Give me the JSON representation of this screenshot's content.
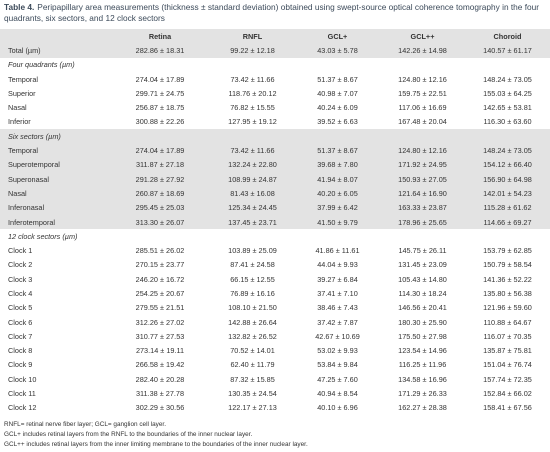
{
  "title": {
    "label": "Table 4.",
    "text": "Peripapillary area measurements (thickness ± standard deviation) obtained using swept-source optical coherence tomography in the four quadrants, six sectors, and 12 clock sectors"
  },
  "table": {
    "columns": [
      "Retina",
      "RNFL",
      "GCL+",
      "GCL++",
      "Choroid"
    ],
    "total": {
      "label": "Total (µm)",
      "values": [
        "282.86 ± 18.31",
        "99.22 ± 12.18",
        "43.03 ± 5.78",
        "142.26 ± 14.98",
        "140.57 ± 61.17"
      ]
    },
    "sections": [
      {
        "heading": "Four quadrants (µm)",
        "shaded": false,
        "rows": [
          {
            "label": "Temporal",
            "values": [
              "274.04 ± 17.89",
              "73.42 ± 11.66",
              "51.37 ± 8.67",
              "124.80 ± 12.16",
              "148.24 ± 73.05"
            ]
          },
          {
            "label": "Superior",
            "values": [
              "299.71 ± 24.75",
              "118.76 ± 20.12",
              "40.98 ± 7.07",
              "159.75 ± 22.51",
              "155.03 ± 64.25"
            ]
          },
          {
            "label": "Nasal",
            "values": [
              "256.87 ± 18.75",
              "76.82 ± 15.55",
              "40.24 ± 6.09",
              "117.06 ± 16.69",
              "142.65 ± 53.81"
            ]
          },
          {
            "label": "Inferior",
            "values": [
              "300.88 ± 22.26",
              "127.95 ± 19.12",
              "39.52 ± 6.63",
              "167.48 ± 20.04",
              "116.30 ± 63.60"
            ]
          }
        ]
      },
      {
        "heading": "Six sectors (µm)",
        "shaded": true,
        "rows": [
          {
            "label": "Temporal",
            "values": [
              "274.04 ± 17.89",
              "73.42 ± 11.66",
              "51.37 ± 8.67",
              "124.80 ± 12.16",
              "148.24 ± 73.05"
            ]
          },
          {
            "label": "Superotemporal",
            "values": [
              "311.87 ± 27.18",
              "132.24 ± 22.80",
              "39.68 ± 7.80",
              "171.92 ± 24.95",
              "154.12 ± 66.40"
            ]
          },
          {
            "label": "Superonasal",
            "values": [
              "291.28 ± 27.92",
              "108.99 ± 24.87",
              "41.94 ± 8.07",
              "150.93 ± 27.05",
              "156.90 ± 64.98"
            ]
          },
          {
            "label": "Nasal",
            "values": [
              "260.87 ± 18.69",
              "81.43 ± 16.08",
              "40.20 ± 6.05",
              "121.64 ± 16.90",
              "142.01 ± 54.23"
            ]
          },
          {
            "label": "Inferonasal",
            "values": [
              "295.45 ± 25.03",
              "125.34 ± 24.45",
              "37.99 ± 6.42",
              "163.33 ± 23.87",
              "115.28 ± 61.62"
            ]
          },
          {
            "label": "Inferotemporal",
            "values": [
              "313.30 ± 26.07",
              "137.45 ± 23.71",
              "41.50 ± 9.79",
              "178.96 ± 25.65",
              "114.66 ± 69.27"
            ]
          }
        ]
      },
      {
        "heading": "12 clock sectors (µm)",
        "shaded": false,
        "rows": [
          {
            "label": "Clock 1",
            "values": [
              "285.51 ± 26.02",
              "103.89 ± 25.09",
              "41.86 ± 11.61",
              "145.75 ± 26.11",
              "153.79 ± 62.85"
            ]
          },
          {
            "label": "Clock 2",
            "values": [
              "270.15 ± 23.77",
              "87.41 ± 24.58",
              "44.04 ± 9.93",
              "131.45 ± 23.09",
              "150.79 ± 58.54"
            ]
          },
          {
            "label": "Clock 3",
            "values": [
              "246.20 ± 16.72",
              "66.15 ± 12.55",
              "39.27 ± 6.84",
              "105.43 ± 14.80",
              "141.36 ± 52.22"
            ]
          },
          {
            "label": "Clock 4",
            "values": [
              "254.25 ± 20.67",
              "76.89 ± 16.16",
              "37.41 ± 7.10",
              "114.30 ± 18.24",
              "135.80 ± 56.38"
            ]
          },
          {
            "label": "Clock 5",
            "values": [
              "279.55 ± 21.51",
              "108.10 ± 21.50",
              "38.46 ± 7.43",
              "146.56 ± 20.41",
              "121.96 ± 59.60"
            ]
          },
          {
            "label": "Clock 6",
            "values": [
              "312.26 ± 27.02",
              "142.88 ± 26.64",
              "37.42 ± 7.87",
              "180.30 ± 25.90",
              "110.88 ± 64.67"
            ]
          },
          {
            "label": "Clock 7",
            "values": [
              "310.77 ± 27.53",
              "132.82 ± 26.52",
              "42.67 ± 10.69",
              "175.50 ± 27.98",
              "116.07 ± 70.35"
            ]
          },
          {
            "label": "Clock 8",
            "values": [
              "273.14 ± 19.11",
              "70.52 ± 14.01",
              "53.02 ± 9.93",
              "123.54 ± 14.96",
              "135.87 ± 75.81"
            ]
          },
          {
            "label": "Clock 9",
            "values": [
              "266.58 ± 19.42",
              "62.40 ± 11.79",
              "53.84 ± 9.84",
              "116.25 ± 11.96",
              "151.04 ± 76.74"
            ]
          },
          {
            "label": "Clock 10",
            "values": [
              "282.40 ± 20.28",
              "87.32 ± 15.85",
              "47.25 ± 7.60",
              "134.58 ± 16.96",
              "157.74 ± 72.35"
            ]
          },
          {
            "label": "Clock 11",
            "values": [
              "311.38 ± 27.78",
              "130.35 ± 24.54",
              "40.94 ± 8.54",
              "171.29 ± 26.33",
              "152.84 ± 66.02"
            ]
          },
          {
            "label": "Clock 12",
            "values": [
              "302.29 ± 30.56",
              "122.17 ± 27.13",
              "40.10 ± 6.96",
              "162.27 ± 28.38",
              "158.41 ± 67.56"
            ]
          }
        ]
      }
    ]
  },
  "footnotes": [
    "RNFL= retinal nerve fiber layer; GCL= ganglion cell layer.",
    "GCL+ includes retinal layers from the RNFL to the boundaries of the inner nuclear layer.",
    "GCL++ includes retinal layers from the inner limiting membrane to the boundaries of the inner nuclear layer."
  ]
}
